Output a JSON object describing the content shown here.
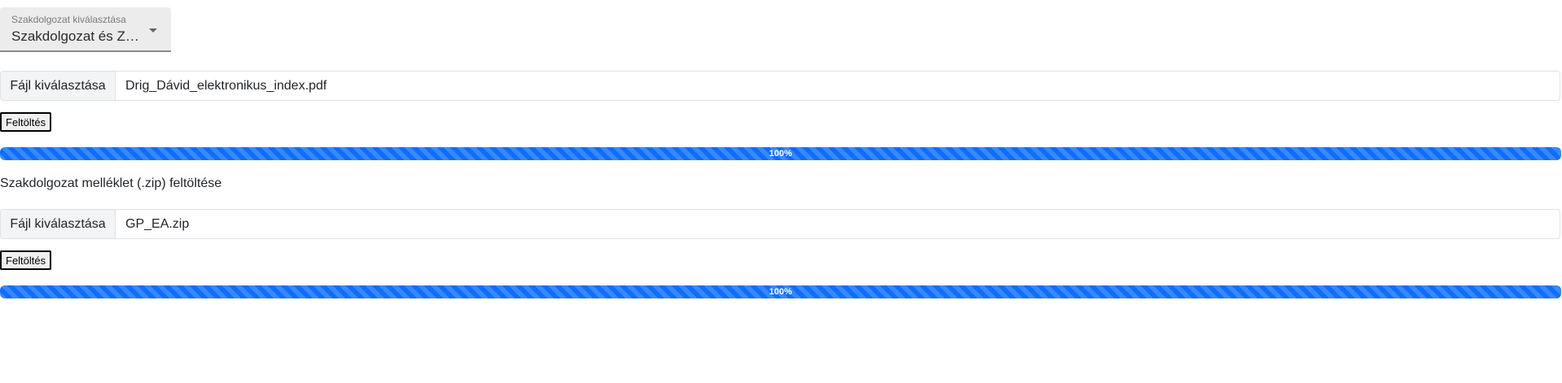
{
  "thesis_select": {
    "label": "Szakdolgozat kiválasztása",
    "selected_value": "Szakdolgozat és Záróvizsga"
  },
  "upload_sections": [
    {
      "heading": "",
      "file_button_label": "Fájl kiválasztása",
      "file_name": "Drig_Dávid_elektronikus_index.pdf",
      "upload_button_label": "Feltöltés",
      "progress_percent": 100,
      "progress_text": "100%"
    },
    {
      "heading": "Szakdolgozat melléklet (.zip) feltöltése",
      "file_button_label": "Fájl kiválasztása",
      "file_name": "GP_EA.zip",
      "upload_button_label": "Feltöltés",
      "progress_percent": 100,
      "progress_text": "100%"
    }
  ],
  "colors": {
    "progress_bar": "#0d6efd",
    "select_background": "#ececec"
  }
}
